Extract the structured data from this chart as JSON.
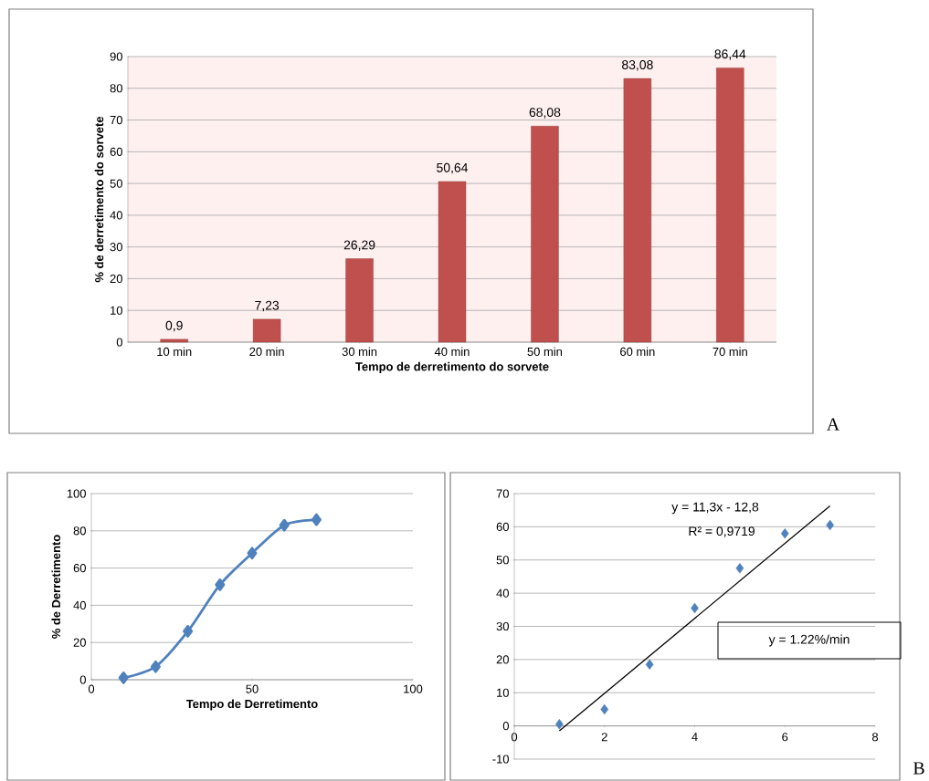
{
  "chart_data": [
    {
      "type": "bar",
      "xlabel": "Tempo de derretimento do sorvete",
      "ylabel": "% de derretimento do sorvete",
      "categories": [
        "10 min",
        "20 min",
        "30 min",
        "40 min",
        "50 min",
        "60 min",
        "70 min"
      ],
      "values": [
        0.9,
        7.23,
        26.29,
        50.64,
        68.08,
        83.08,
        86.44
      ],
      "value_labels": [
        "0,9",
        "7,23",
        "26,29",
        "50,64",
        "68,08",
        "83,08",
        "86,44"
      ],
      "color": "#c0504d",
      "ylim": [
        0,
        90
      ],
      "yticks": [
        0,
        10,
        20,
        30,
        40,
        50,
        60,
        70,
        80,
        90
      ],
      "grid": "y",
      "annotations": [
        "A"
      ]
    },
    {
      "type": "line",
      "xlabel": "Tempo de Derretimento",
      "ylabel": "% de Derretimento",
      "x": [
        10,
        20,
        30,
        40,
        50,
        60,
        70
      ],
      "values": [
        1,
        7,
        26,
        51,
        68,
        83,
        86
      ],
      "color": "#4f81bd",
      "marker": "diamond",
      "xlim": [
        0,
        100
      ],
      "xticks": [
        0,
        50,
        100
      ],
      "ylim": [
        0,
        100
      ],
      "yticks": [
        0,
        20,
        40,
        60,
        80,
        100
      ],
      "grid": "y"
    },
    {
      "type": "scatter",
      "marker": "diamond",
      "xlim": [
        0,
        8
      ],
      "xticks": [
        0,
        2,
        4,
        6,
        8
      ],
      "ylim": [
        -10,
        70
      ],
      "yticks": [
        -10,
        0,
        10,
        20,
        30,
        40,
        50,
        60,
        70
      ],
      "grid": "y",
      "series": [
        {
          "type": "scatter",
          "color": "#4f81bd",
          "x": [
            1,
            2,
            3,
            4,
            5,
            6,
            7
          ],
          "values": [
            0.5,
            5,
            18.5,
            35.5,
            47.5,
            58,
            60.5
          ]
        },
        {
          "type": "line",
          "color": "#000000",
          "marker": "none",
          "x": [
            1,
            7
          ],
          "values": [
            -1.5,
            66.3
          ]
        }
      ],
      "annotations": [
        "y = 11,3x - 12,8",
        "R² = 0,9719",
        "y = 1.22%/min",
        "B"
      ]
    }
  ]
}
